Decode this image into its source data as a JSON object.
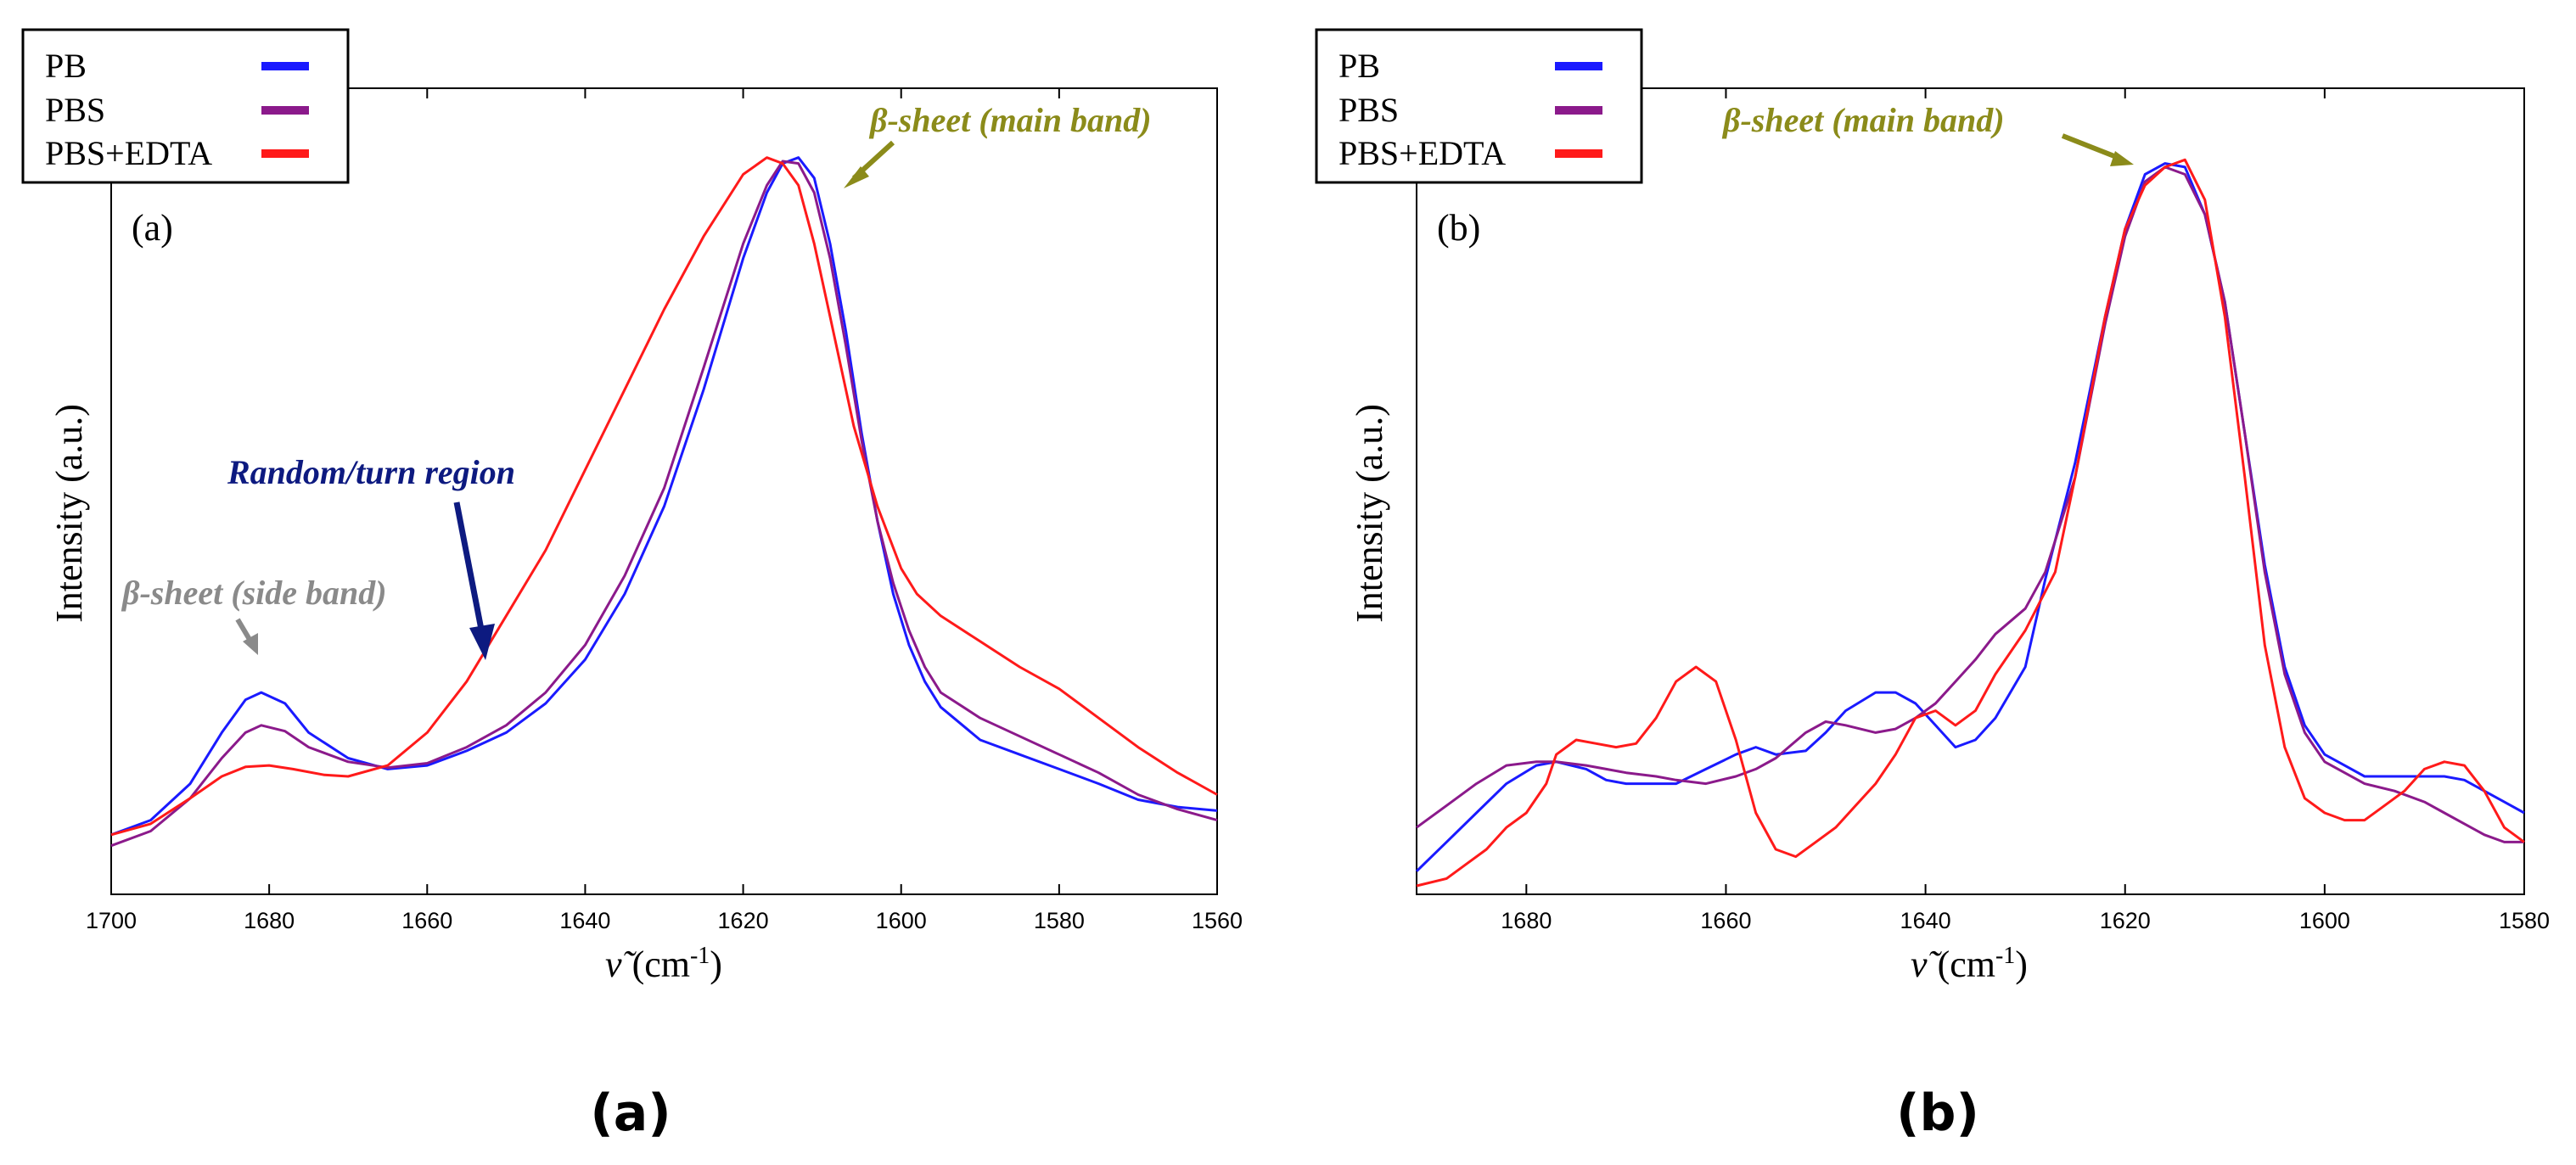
{
  "colors": {
    "pb": "#1a1aff",
    "pbs": "#8b1a8b",
    "pbs_edta": "#ff1a1a",
    "ann_main": "#8b8b1a",
    "ann_turn": "#0d1a80",
    "ann_side": "#8a8a8a"
  },
  "chart_data": [
    {
      "id": "a",
      "type": "line",
      "panel_label": "(a)",
      "caption": "(a)",
      "xlabel_symbol": "ν̃",
      "xlabel_unit": "(cm",
      "xlabel_exp": "-1",
      "xlabel_close": ")",
      "ylabel": "Intensity (a.u.)",
      "xlim": [
        1700,
        1560
      ],
      "ylim": [
        0,
        1
      ],
      "xticks": [
        "1700",
        "1680",
        "1660",
        "1640",
        "1620",
        "1600",
        "1580",
        "1560"
      ],
      "legend": [
        "PB",
        "PBS",
        "PBS+EDTA"
      ],
      "annotations": {
        "main_band": "β-sheet (main band)",
        "turn_region": "Random/turn region",
        "side_band": "β-sheet (side band)"
      },
      "series": [
        {
          "name": "PB",
          "color": "#1a1aff",
          "x": [
            1700,
            1695,
            1690,
            1686,
            1683,
            1681,
            1678,
            1675,
            1670,
            1665,
            1660,
            1655,
            1650,
            1645,
            1640,
            1635,
            1630,
            1625,
            1620,
            1617,
            1615,
            1613,
            1611,
            1609,
            1607,
            1605,
            1603,
            1601,
            1599,
            1597,
            1595,
            1590,
            1585,
            1580,
            1575,
            1570,
            1565,
            1560
          ],
          "y": [
            0.07,
            0.09,
            0.14,
            0.21,
            0.255,
            0.265,
            0.25,
            0.21,
            0.175,
            0.16,
            0.165,
            0.185,
            0.21,
            0.25,
            0.31,
            0.4,
            0.52,
            0.68,
            0.86,
            0.95,
            0.99,
            0.998,
            0.97,
            0.88,
            0.76,
            0.62,
            0.5,
            0.4,
            0.33,
            0.28,
            0.245,
            0.2,
            0.18,
            0.16,
            0.14,
            0.118,
            0.108,
            0.103
          ]
        },
        {
          "name": "PBS",
          "color": "#8b1a8b",
          "x": [
            1700,
            1695,
            1690,
            1686,
            1683,
            1681,
            1678,
            1675,
            1670,
            1665,
            1660,
            1655,
            1650,
            1645,
            1640,
            1635,
            1630,
            1625,
            1620,
            1617,
            1615,
            1613,
            1611,
            1609,
            1607,
            1605,
            1603,
            1601,
            1599,
            1597,
            1595,
            1590,
            1585,
            1580,
            1575,
            1570,
            1565,
            1560
          ],
          "y": [
            0.055,
            0.075,
            0.12,
            0.175,
            0.21,
            0.22,
            0.212,
            0.19,
            0.17,
            0.162,
            0.168,
            0.19,
            0.22,
            0.265,
            0.33,
            0.425,
            0.545,
            0.71,
            0.88,
            0.96,
            0.993,
            0.99,
            0.95,
            0.86,
            0.74,
            0.61,
            0.5,
            0.415,
            0.35,
            0.3,
            0.265,
            0.23,
            0.205,
            0.18,
            0.155,
            0.125,
            0.105,
            0.09
          ]
        },
        {
          "name": "PBS+EDTA",
          "color": "#ff1a1a",
          "x": [
            1700,
            1695,
            1690,
            1686,
            1683,
            1680,
            1677,
            1673,
            1670,
            1665,
            1660,
            1655,
            1650,
            1645,
            1640,
            1635,
            1630,
            1625,
            1620,
            1617,
            1615,
            1613,
            1611,
            1609,
            1606,
            1603,
            1600,
            1598,
            1595,
            1590,
            1585,
            1580,
            1575,
            1570,
            1565,
            1560
          ],
          "y": [
            0.07,
            0.085,
            0.12,
            0.15,
            0.163,
            0.165,
            0.16,
            0.152,
            0.15,
            0.165,
            0.21,
            0.28,
            0.37,
            0.46,
            0.57,
            0.68,
            0.79,
            0.89,
            0.975,
            0.998,
            0.99,
            0.96,
            0.88,
            0.78,
            0.63,
            0.52,
            0.435,
            0.4,
            0.37,
            0.335,
            0.3,
            0.27,
            0.23,
            0.19,
            0.155,
            0.125
          ]
        }
      ]
    },
    {
      "id": "b",
      "type": "line",
      "panel_label": "(b)",
      "caption": "(b)",
      "xlabel_symbol": "ν̃",
      "xlabel_unit": "(cm",
      "xlabel_exp": "-1",
      "xlabel_close": ")",
      "ylabel": "Intensity (a.u.)",
      "xlim": [
        1691,
        1580
      ],
      "ylim": [
        0,
        1
      ],
      "xticks": [
        "1680",
        "1660",
        "1640",
        "1620",
        "1600",
        "1580"
      ],
      "legend": [
        "PB",
        "PBS",
        "PBS+EDTA"
      ],
      "annotations": {
        "main_band": "β-sheet (main band)"
      },
      "series": [
        {
          "name": "PB",
          "color": "#1a1aff",
          "x": [
            1691,
            1688,
            1685,
            1682,
            1679,
            1677,
            1674,
            1672,
            1670,
            1667,
            1665,
            1662,
            1659,
            1657,
            1655,
            1652,
            1650,
            1648,
            1645,
            1643,
            1641,
            1639,
            1637,
            1635,
            1633,
            1630,
            1628,
            1625,
            1622,
            1620,
            1618,
            1616,
            1614,
            1612,
            1610,
            1608,
            1606,
            1604,
            1602,
            1600,
            1598,
            1596,
            1593,
            1590,
            1588,
            1586,
            1584,
            1582,
            1580
          ],
          "y": [
            0.02,
            0.06,
            0.1,
            0.14,
            0.165,
            0.17,
            0.16,
            0.145,
            0.14,
            0.14,
            0.14,
            0.16,
            0.18,
            0.19,
            0.18,
            0.185,
            0.21,
            0.24,
            0.265,
            0.265,
            0.25,
            0.22,
            0.19,
            0.2,
            0.23,
            0.3,
            0.42,
            0.58,
            0.78,
            0.9,
            0.975,
            0.99,
            0.985,
            0.92,
            0.8,
            0.62,
            0.44,
            0.3,
            0.22,
            0.18,
            0.165,
            0.15,
            0.15,
            0.15,
            0.15,
            0.145,
            0.13,
            0.115,
            0.1
          ]
        },
        {
          "name": "PBS",
          "color": "#8b1a8b",
          "x": [
            1691,
            1688,
            1685,
            1682,
            1679,
            1677,
            1674,
            1672,
            1670,
            1667,
            1665,
            1662,
            1659,
            1657,
            1655,
            1652,
            1650,
            1648,
            1645,
            1643,
            1641,
            1639,
            1637,
            1635,
            1633,
            1630,
            1628,
            1625,
            1622,
            1620,
            1618,
            1616,
            1614,
            1612,
            1610,
            1608,
            1606,
            1604,
            1602,
            1600,
            1598,
            1596,
            1593,
            1590,
            1588,
            1586,
            1584,
            1582,
            1580
          ],
          "y": [
            0.08,
            0.11,
            0.14,
            0.165,
            0.17,
            0.17,
            0.165,
            0.16,
            0.155,
            0.15,
            0.145,
            0.14,
            0.15,
            0.16,
            0.175,
            0.21,
            0.225,
            0.22,
            0.21,
            0.215,
            0.23,
            0.25,
            0.28,
            0.31,
            0.345,
            0.38,
            0.43,
            0.56,
            0.77,
            0.89,
            0.965,
            0.985,
            0.975,
            0.92,
            0.8,
            0.62,
            0.43,
            0.29,
            0.21,
            0.17,
            0.155,
            0.14,
            0.13,
            0.115,
            0.1,
            0.085,
            0.07,
            0.06,
            0.06
          ]
        },
        {
          "name": "PBS+EDTA",
          "color": "#ff1a1a",
          "x": [
            1691,
            1688,
            1686,
            1684,
            1682,
            1680,
            1678,
            1677,
            1675,
            1673,
            1671,
            1669,
            1667,
            1665,
            1663,
            1661,
            1659,
            1657,
            1655,
            1653,
            1651,
            1649,
            1647,
            1645,
            1643,
            1641,
            1639,
            1637,
            1635,
            1633,
            1630,
            1627,
            1625,
            1622,
            1620,
            1618,
            1616,
            1614,
            1612,
            1610,
            1608,
            1606,
            1604,
            1602,
            1600,
            1598,
            1596,
            1594,
            1592,
            1590,
            1588,
            1586,
            1584,
            1582,
            1580
          ],
          "y": [
            0.0,
            0.01,
            0.03,
            0.05,
            0.08,
            0.1,
            0.14,
            0.18,
            0.2,
            0.195,
            0.19,
            0.195,
            0.23,
            0.28,
            0.3,
            0.28,
            0.2,
            0.1,
            0.05,
            0.04,
            0.06,
            0.08,
            0.11,
            0.14,
            0.18,
            0.23,
            0.24,
            0.22,
            0.24,
            0.29,
            0.35,
            0.43,
            0.56,
            0.78,
            0.9,
            0.96,
            0.985,
            0.995,
            0.94,
            0.78,
            0.56,
            0.33,
            0.19,
            0.12,
            0.1,
            0.09,
            0.09,
            0.11,
            0.13,
            0.16,
            0.17,
            0.165,
            0.13,
            0.08,
            0.06
          ]
        }
      ]
    }
  ]
}
